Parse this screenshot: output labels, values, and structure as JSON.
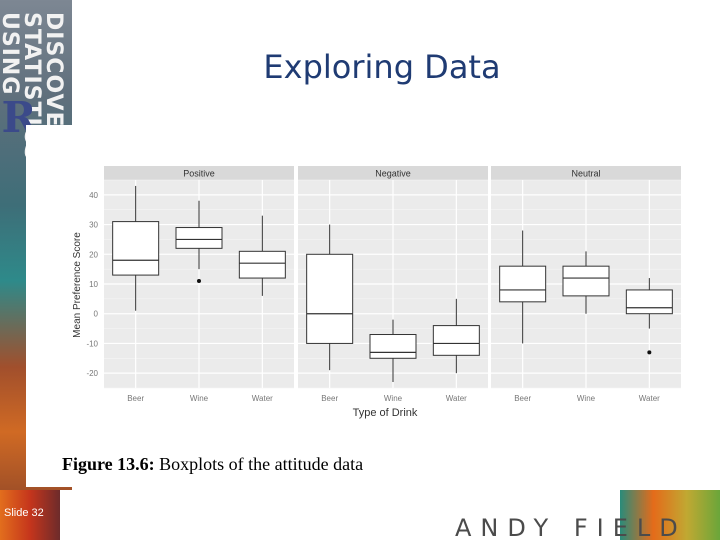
{
  "slide": {
    "sidebar_title": "DISCOVERING STATISTICS USING",
    "sidebar_r": "R",
    "title": "Exploring Data",
    "caption_bold": "Figure 13.6:",
    "caption_text": " Boxplots of the attitude data",
    "slide_number": "Slide 32",
    "brand": "ANDY FIELD"
  },
  "chart_data": {
    "type": "boxplot",
    "facets": [
      "Positive",
      "Negative",
      "Neutral"
    ],
    "categories": [
      "Beer",
      "Wine",
      "Water"
    ],
    "xlabel": "Type of Drink",
    "ylabel": "Mean Preference Score",
    "ylim": [
      -25,
      45
    ],
    "yticks": [
      -20,
      -10,
      0,
      10,
      20,
      30,
      40
    ],
    "grid": true,
    "boxes": [
      {
        "facet": "Positive",
        "category": "Beer",
        "min": 1,
        "q1": 13,
        "median": 18,
        "q3": 31,
        "max": 43,
        "outliers": []
      },
      {
        "facet": "Positive",
        "category": "Wine",
        "min": 15,
        "q1": 22,
        "median": 25,
        "q3": 29,
        "max": 38,
        "outliers": [
          11
        ]
      },
      {
        "facet": "Positive",
        "category": "Water",
        "min": 6,
        "q1": 12,
        "median": 17,
        "q3": 21,
        "max": 33,
        "outliers": []
      },
      {
        "facet": "Negative",
        "category": "Beer",
        "min": -19,
        "q1": -10,
        "median": 0,
        "q3": 20,
        "max": 30,
        "outliers": []
      },
      {
        "facet": "Negative",
        "category": "Wine",
        "min": -23,
        "q1": -15,
        "median": -13,
        "q3": -7,
        "max": -2,
        "outliers": []
      },
      {
        "facet": "Negative",
        "category": "Water",
        "min": -20,
        "q1": -14,
        "median": -10,
        "q3": -4,
        "max": 5,
        "outliers": []
      },
      {
        "facet": "Neutral",
        "category": "Beer",
        "min": -10,
        "q1": 4,
        "median": 8,
        "q3": 16,
        "max": 28,
        "outliers": []
      },
      {
        "facet": "Neutral",
        "category": "Wine",
        "min": 0,
        "q1": 6,
        "median": 12,
        "q3": 16,
        "max": 21,
        "outliers": []
      },
      {
        "facet": "Neutral",
        "category": "Water",
        "min": -5,
        "q1": 0,
        "median": 2,
        "q3": 8,
        "max": 12,
        "outliers": [
          -13
        ]
      }
    ]
  }
}
